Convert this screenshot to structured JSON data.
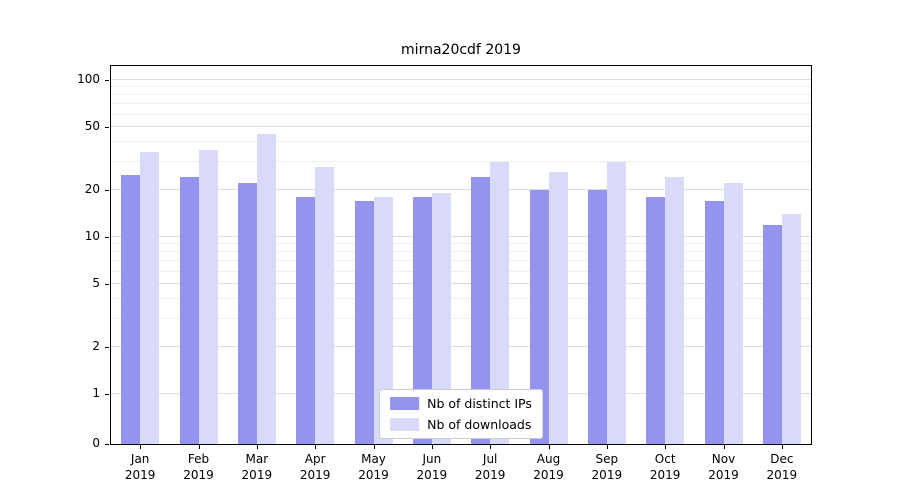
{
  "chart_data": {
    "type": "bar",
    "title": "mirna20cdf 2019",
    "categories": [
      "Jan",
      "Feb",
      "Mar",
      "Apr",
      "May",
      "Jun",
      "Jul",
      "Aug",
      "Sep",
      "Oct",
      "Nov",
      "Dec"
    ],
    "x_sublabel": "2019",
    "series": [
      {
        "name": "Nb of distinct IPs",
        "color": "#9494f0",
        "values": [
          25,
          24,
          22,
          18,
          17,
          18,
          24,
          20,
          20,
          18,
          17,
          12
        ]
      },
      {
        "name": "Nb of downloads",
        "color": "#d9d9f9",
        "values": [
          35,
          36,
          45,
          28,
          18,
          19,
          30,
          26,
          30,
          24,
          22,
          14
        ]
      }
    ],
    "yscale": "symlog",
    "yticks": [
      0,
      1,
      2,
      5,
      10,
      20,
      50,
      100
    ],
    "yticks_minor": [
      3,
      4,
      6,
      7,
      8,
      9,
      30,
      40,
      60,
      70,
      80,
      90
    ],
    "ylim": [
      0,
      121
    ],
    "xlabel": "",
    "ylabel": "",
    "grid": true,
    "legend_position": "lower center",
    "colors": {
      "axis": "#000000",
      "grid_major": "#dcdcdc",
      "grid_minor": "#efefef",
      "legend_border": "#cccccc"
    }
  }
}
